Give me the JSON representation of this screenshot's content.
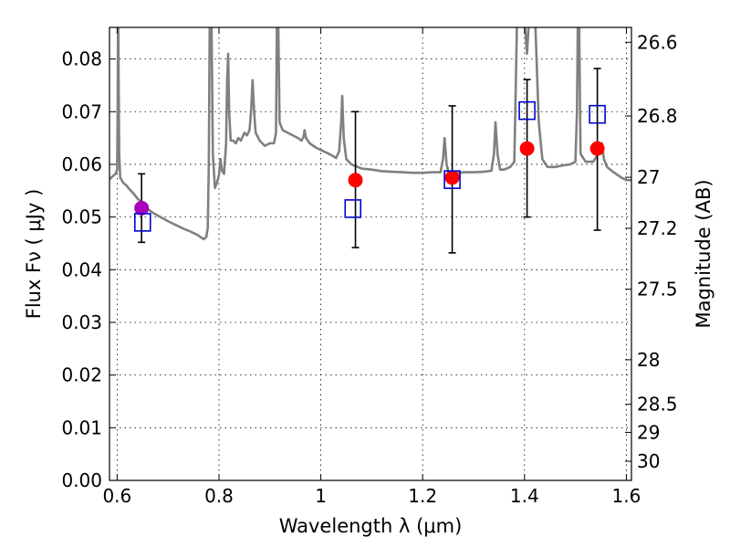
{
  "chart_data": {
    "type": "scatter",
    "xlabel": "Wavelength  λ (μm)",
    "ylabel": "Flux  Fν  ( μJy )",
    "y2label": "Magnitude (AB)",
    "xlim": [
      0.585,
      1.61
    ],
    "ylim": [
      0.0,
      0.086
    ],
    "x_ticks": [
      "0.6",
      "0.8",
      "1",
      "1.2",
      "1.4",
      "1.6"
    ],
    "x_tick_values": [
      0.6,
      0.8,
      1.0,
      1.2,
      1.4,
      1.6
    ],
    "y_ticks": [
      "0.00",
      "0.01",
      "0.02",
      "0.03",
      "0.04",
      "0.05",
      "0.06",
      "0.07",
      "0.08"
    ],
    "y_tick_values": [
      0.0,
      0.01,
      0.02,
      0.03,
      0.04,
      0.05,
      0.06,
      0.07,
      0.08
    ],
    "y2_ticks": [
      "26.6",
      "26.8",
      "27",
      "27.2",
      "27.5",
      "28",
      "28.5",
      "29",
      "30"
    ],
    "grid": true,
    "colors": {
      "model": "#808080",
      "red_points": "#ff0000",
      "purple_point": "#aa00bb",
      "squares": "#0000cc",
      "errorbars": "#000000"
    },
    "series": [
      {
        "marker": "circle",
        "color": "#ff0000",
        "points": [
          {
            "x": 1.068,
            "y": 0.057,
            "ylo": 0.0442,
            "yhi": 0.07
          },
          {
            "x": 1.258,
            "y": 0.0575,
            "ylo": 0.0432,
            "yhi": 0.0711
          },
          {
            "x": 1.405,
            "y": 0.063,
            "ylo": 0.05,
            "yhi": 0.0761
          },
          {
            "x": 1.543,
            "y": 0.063,
            "ylo": 0.0475,
            "yhi": 0.0782
          }
        ]
      },
      {
        "marker": "circle",
        "color": "#aa00bb",
        "points": [
          {
            "x": 0.648,
            "y": 0.0517,
            "ylo": 0.0452,
            "yhi": 0.0582
          }
        ]
      },
      {
        "marker": "open-square",
        "color": "#0000cc",
        "points": [
          {
            "x": 0.65,
            "y": 0.049
          },
          {
            "x": 1.063,
            "y": 0.0516
          },
          {
            "x": 1.258,
            "y": 0.0571
          },
          {
            "x": 1.405,
            "y": 0.0702
          },
          {
            "x": 1.543,
            "y": 0.0695
          }
        ]
      },
      {
        "marker": "line",
        "color": "#808080",
        "points": [
          [
            0.585,
            0.0572
          ],
          [
            0.592,
            0.0578
          ],
          [
            0.597,
            0.0582
          ],
          [
            0.6,
            0.059
          ],
          [
            0.601,
            0.07
          ],
          [
            0.602,
            0.09
          ],
          [
            0.604,
            0.062
          ],
          [
            0.606,
            0.0575
          ],
          [
            0.612,
            0.0565
          ],
          [
            0.618,
            0.056
          ],
          [
            0.625,
            0.0552
          ],
          [
            0.632,
            0.0545
          ],
          [
            0.64,
            0.0535
          ],
          [
            0.65,
            0.0525
          ],
          [
            0.66,
            0.0515
          ],
          [
            0.672,
            0.0507
          ],
          [
            0.685,
            0.05
          ],
          [
            0.7,
            0.0492
          ],
          [
            0.715,
            0.0485
          ],
          [
            0.73,
            0.0478
          ],
          [
            0.745,
            0.0472
          ],
          [
            0.758,
            0.0466
          ],
          [
            0.765,
            0.0461
          ],
          [
            0.77,
            0.0458
          ],
          [
            0.775,
            0.0462
          ],
          [
            0.778,
            0.048
          ],
          [
            0.78,
            0.06
          ],
          [
            0.782,
            0.09
          ],
          [
            0.785,
            0.09
          ],
          [
            0.788,
            0.062
          ],
          [
            0.792,
            0.0555
          ],
          [
            0.796,
            0.0565
          ],
          [
            0.8,
            0.058
          ],
          [
            0.803,
            0.061
          ],
          [
            0.806,
            0.0588
          ],
          [
            0.81,
            0.0582
          ],
          [
            0.814,
            0.064
          ],
          [
            0.816,
            0.076
          ],
          [
            0.818,
            0.081
          ],
          [
            0.82,
            0.07
          ],
          [
            0.823,
            0.0645
          ],
          [
            0.828,
            0.0645
          ],
          [
            0.833,
            0.064
          ],
          [
            0.838,
            0.065
          ],
          [
            0.843,
            0.0645
          ],
          [
            0.85,
            0.066
          ],
          [
            0.855,
            0.0655
          ],
          [
            0.86,
            0.0665
          ],
          [
            0.863,
            0.07
          ],
          [
            0.866,
            0.076
          ],
          [
            0.869,
            0.07
          ],
          [
            0.872,
            0.066
          ],
          [
            0.88,
            0.0645
          ],
          [
            0.89,
            0.0635
          ],
          [
            0.9,
            0.064
          ],
          [
            0.908,
            0.064
          ],
          [
            0.912,
            0.066
          ],
          [
            0.914,
            0.09
          ],
          [
            0.916,
            0.09
          ],
          [
            0.919,
            0.068
          ],
          [
            0.925,
            0.0665
          ],
          [
            0.935,
            0.066
          ],
          [
            0.945,
            0.0655
          ],
          [
            0.955,
            0.065
          ],
          [
            0.962,
            0.0645
          ],
          [
            0.966,
            0.0652
          ],
          [
            0.968,
            0.0665
          ],
          [
            0.971,
            0.065
          ],
          [
            0.978,
            0.064
          ],
          [
            0.99,
            0.0632
          ],
          [
            1.005,
            0.0625
          ],
          [
            1.02,
            0.0618
          ],
          [
            1.03,
            0.0612
          ],
          [
            1.036,
            0.0625
          ],
          [
            1.04,
            0.068
          ],
          [
            1.042,
            0.073
          ],
          [
            1.045,
            0.065
          ],
          [
            1.05,
            0.061
          ],
          [
            1.06,
            0.06
          ],
          [
            1.08,
            0.0592
          ],
          [
            1.1,
            0.059
          ],
          [
            1.12,
            0.0587
          ],
          [
            1.14,
            0.0586
          ],
          [
            1.16,
            0.0585
          ],
          [
            1.18,
            0.0584
          ],
          [
            1.2,
            0.0584
          ],
          [
            1.22,
            0.0585
          ],
          [
            1.235,
            0.0585
          ],
          [
            1.24,
            0.061
          ],
          [
            1.243,
            0.065
          ],
          [
            1.247,
            0.06
          ],
          [
            1.252,
            0.058
          ],
          [
            1.26,
            0.0582
          ],
          [
            1.28,
            0.0585
          ],
          [
            1.3,
            0.0585
          ],
          [
            1.32,
            0.0586
          ],
          [
            1.335,
            0.0588
          ],
          [
            1.34,
            0.062
          ],
          [
            1.343,
            0.068
          ],
          [
            1.347,
            0.062
          ],
          [
            1.352,
            0.059
          ],
          [
            1.36,
            0.059
          ],
          [
            1.372,
            0.0595
          ],
          [
            1.38,
            0.0605
          ],
          [
            1.385,
            0.086
          ],
          [
            1.39,
            0.09
          ],
          [
            1.398,
            0.09
          ],
          [
            1.405,
            0.081
          ],
          [
            1.41,
            0.09
          ],
          [
            1.42,
            0.09
          ],
          [
            1.428,
            0.068
          ],
          [
            1.435,
            0.061
          ],
          [
            1.445,
            0.0595
          ],
          [
            1.46,
            0.0595
          ],
          [
            1.475,
            0.0598
          ],
          [
            1.49,
            0.06
          ],
          [
            1.5,
            0.0605
          ],
          [
            1.503,
            0.07
          ],
          [
            1.505,
            0.09
          ],
          [
            1.507,
            0.09
          ],
          [
            1.51,
            0.062
          ],
          [
            1.52,
            0.0605
          ],
          [
            1.535,
            0.0605
          ],
          [
            1.545,
            0.062
          ],
          [
            1.552,
            0.064
          ],
          [
            1.556,
            0.061
          ],
          [
            1.562,
            0.0595
          ],
          [
            1.575,
            0.0585
          ],
          [
            1.59,
            0.0575
          ],
          [
            1.6,
            0.057
          ],
          [
            1.61,
            0.057
          ]
        ]
      }
    ]
  }
}
